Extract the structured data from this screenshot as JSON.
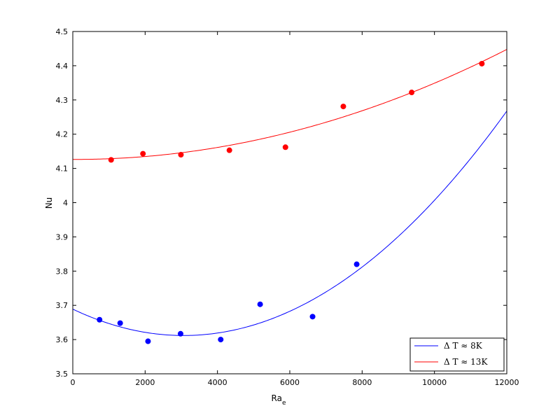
{
  "chart_data": {
    "type": "scatter",
    "xlabel": "Ra",
    "xlabel_sub": "e",
    "ylabel": "Nu",
    "xlim": [
      0,
      12000
    ],
    "ylim": [
      3.5,
      4.5
    ],
    "xticks": [
      0,
      2000,
      4000,
      6000,
      8000,
      10000,
      12000
    ],
    "yticks": [
      3.5,
      3.6,
      3.7,
      3.8,
      3.9,
      4,
      4.1,
      4.2,
      4.3,
      4.4,
      4.5
    ],
    "grid": false,
    "legend_position": "bottom-right",
    "series": [
      {
        "name": "Δ T ≈ 8K",
        "color": "#0000ff",
        "points": [
          [
            740,
            3.658
          ],
          [
            1310,
            3.648
          ],
          [
            2080,
            3.595
          ],
          [
            2980,
            3.617
          ],
          [
            4090,
            3.6
          ],
          [
            5180,
            3.703
          ],
          [
            6630,
            3.667
          ],
          [
            7850,
            3.82
          ]
        ],
        "fit_coefficients": [
          3.6889,
          -5.03e-05,
          8.21e-09
        ]
      },
      {
        "name": "Δ T ≈ 13K",
        "color": "#ff0000",
        "points": [
          [
            1060,
            4.125
          ],
          [
            1940,
            4.143
          ],
          [
            2990,
            4.14
          ],
          [
            4330,
            4.153
          ],
          [
            5880,
            4.162
          ],
          [
            7480,
            4.281
          ],
          [
            9370,
            4.322
          ],
          [
            11310,
            4.406
          ]
        ],
        "fit_coefficients": [
          4.1263,
          -2.7e-07,
          2.254e-09
        ]
      }
    ]
  }
}
